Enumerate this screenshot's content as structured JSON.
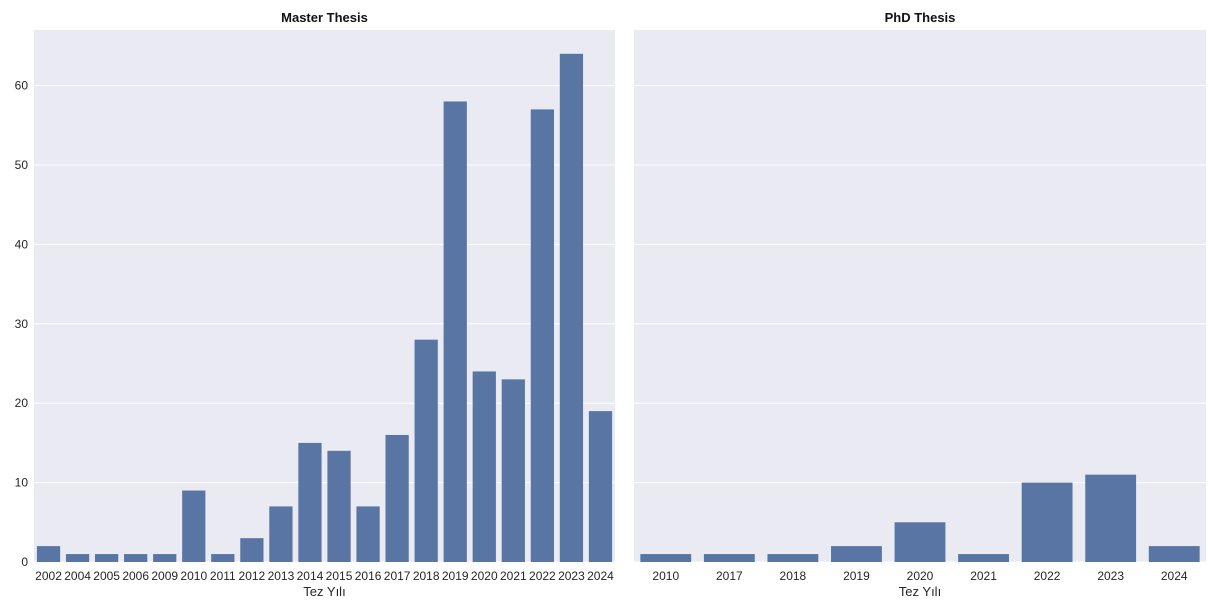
{
  "chart_data": [
    {
      "type": "bar",
      "title": "Master Thesis",
      "xlabel": "Tez Yılı",
      "ylabel": "",
      "categories": [
        "2002",
        "2004",
        "2005",
        "2006",
        "2009",
        "2010",
        "2011",
        "2012",
        "2013",
        "2014",
        "2015",
        "2016",
        "2017",
        "2018",
        "2019",
        "2020",
        "2021",
        "2022",
        "2023",
        "2024"
      ],
      "values": [
        2,
        1,
        1,
        1,
        1,
        9,
        1,
        3,
        7,
        15,
        14,
        7,
        16,
        28,
        58,
        24,
        23,
        57,
        64,
        19
      ],
      "ylim": [
        0,
        67
      ],
      "yticks": [
        0,
        10,
        20,
        30,
        40,
        50,
        60
      ],
      "grid": true,
      "color": "#5875a4",
      "background": "#eaeaf2"
    },
    {
      "type": "bar",
      "title": "PhD Thesis",
      "xlabel": "Tez Yılı",
      "ylabel": "",
      "categories": [
        "2010",
        "2017",
        "2018",
        "2019",
        "2020",
        "2021",
        "2022",
        "2023",
        "2024"
      ],
      "values": [
        1,
        1,
        1,
        2,
        5,
        1,
        10,
        11,
        2
      ],
      "ylim": [
        0,
        67
      ],
      "yticks": [
        0,
        10,
        20,
        30,
        40,
        50,
        60
      ],
      "shared_y": true,
      "grid": true,
      "color": "#5875a4",
      "background": "#eaeaf2"
    }
  ]
}
